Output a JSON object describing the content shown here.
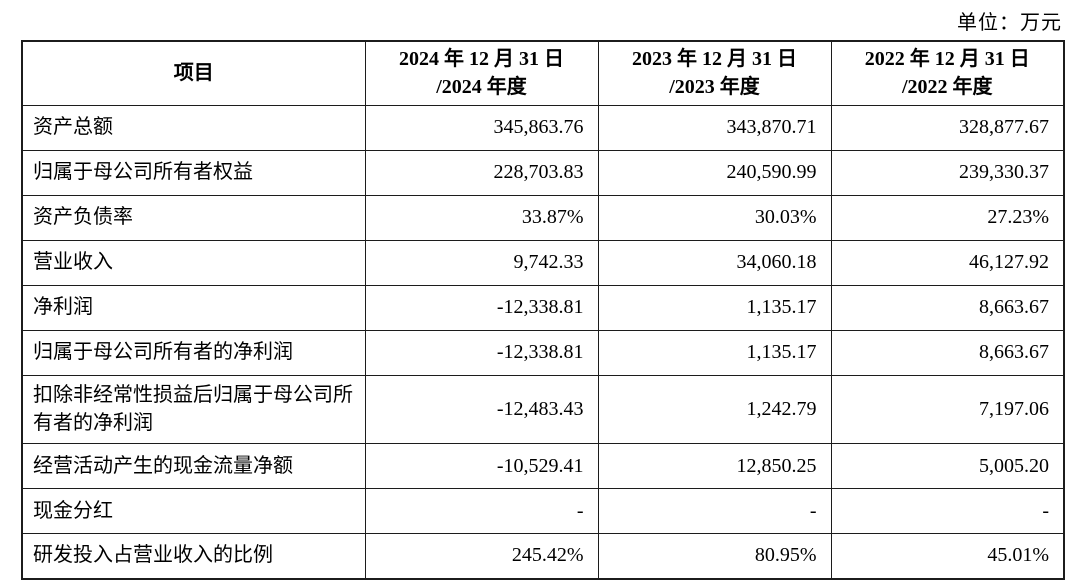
{
  "page": {
    "unit_label": "单位：万元"
  },
  "table": {
    "columns": [
      {
        "label": "项目"
      },
      {
        "line1": "2024 年 12 月 31 日",
        "line2": "/2024 年度"
      },
      {
        "line1": "2023 年 12 月 31 日",
        "line2": "/2023 年度"
      },
      {
        "line1": "2022 年 12 月 31 日",
        "line2": "/2022 年度"
      }
    ],
    "rows": [
      {
        "label": "资产总额",
        "values": [
          "345,863.76",
          "343,870.71",
          "328,877.67"
        ]
      },
      {
        "label": "归属于母公司所有者权益",
        "values": [
          "228,703.83",
          "240,590.99",
          "239,330.37"
        ]
      },
      {
        "label": "资产负债率",
        "values": [
          "33.87%",
          "30.03%",
          "27.23%"
        ]
      },
      {
        "label": "营业收入",
        "values": [
          "9,742.33",
          "34,060.18",
          "46,127.92"
        ]
      },
      {
        "label": "净利润",
        "values": [
          "-12,338.81",
          "1,135.17",
          "8,663.67"
        ]
      },
      {
        "label": "归属于母公司所有者的净利润",
        "values": [
          "-12,338.81",
          "1,135.17",
          "8,663.67"
        ]
      },
      {
        "label": "扣除非经常性损益后归属于母公司所有者的净利润",
        "values": [
          "-12,483.43",
          "1,242.79",
          "7,197.06"
        ]
      },
      {
        "label": "经营活动产生的现金流量净额",
        "values": [
          "-10,529.41",
          "12,850.25",
          "5,005.20"
        ]
      },
      {
        "label": "现金分红",
        "values": [
          "-",
          "-",
          "-"
        ]
      },
      {
        "label": "研发投入占营业收入的比例",
        "values": [
          "245.42%",
          "80.95%",
          "45.01%"
        ]
      }
    ]
  }
}
